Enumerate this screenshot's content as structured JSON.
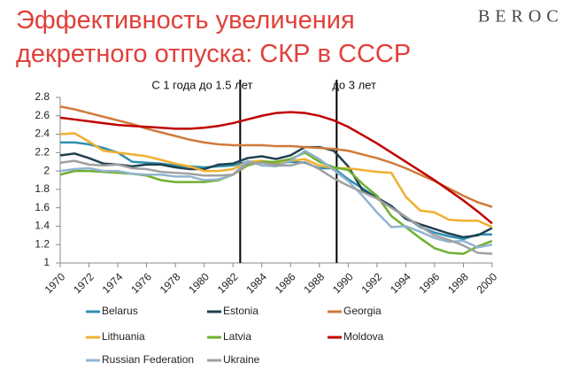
{
  "logo": "BEROC",
  "chart_data": {
    "type": "line",
    "title": [
      "Эффективность увеличения",
      "декретного отпуска: СКР в СССР"
    ],
    "x": [
      1970,
      1971,
      1972,
      1973,
      1974,
      1975,
      1976,
      1977,
      1978,
      1979,
      1980,
      1981,
      1982,
      1983,
      1984,
      1985,
      1986,
      1987,
      1988,
      1989,
      1990,
      1991,
      1992,
      1993,
      1994,
      1995,
      1996,
      1997,
      1998,
      1999,
      2000
    ],
    "xlim": [
      1970,
      2000
    ],
    "xticks": [
      1970,
      1972,
      1974,
      1976,
      1978,
      1980,
      1982,
      1984,
      1986,
      1988,
      1990,
      1992,
      1994,
      1996,
      1998,
      2000
    ],
    "ylim": [
      1,
      2.8
    ],
    "yticks": [
      1,
      1.2,
      1.4,
      1.6,
      1.8,
      2,
      2.2,
      2.4,
      2.6,
      2.8
    ],
    "grid": false,
    "legend": "bottom",
    "annotations": [
      {
        "text": "С 1 года до 1.5 лет",
        "x": 1982.5
      },
      {
        "text": "до 3 лет",
        "x": 1989.2
      }
    ],
    "series": [
      {
        "name": "Belarus",
        "color": "#2f8fb0",
        "values": [
          2.31,
          2.31,
          2.29,
          2.25,
          2.2,
          2.1,
          2.09,
          2.08,
          2.06,
          2.05,
          2.04,
          2.05,
          2.06,
          2.1,
          2.1,
          2.08,
          2.1,
          2.09,
          2.03,
          2.03,
          1.91,
          1.81,
          1.71,
          1.61,
          1.5,
          1.39,
          1.33,
          1.29,
          1.26,
          1.31,
          1.31
        ]
      },
      {
        "name": "Estonia",
        "color": "#1f4050",
        "values": [
          2.17,
          2.19,
          2.14,
          2.08,
          2.07,
          2.05,
          2.07,
          2.07,
          2.04,
          2.02,
          2.02,
          2.07,
          2.08,
          2.14,
          2.16,
          2.13,
          2.17,
          2.26,
          2.26,
          2.22,
          2.05,
          1.79,
          1.71,
          1.62,
          1.48,
          1.42,
          1.37,
          1.32,
          1.28,
          1.3,
          1.38
        ]
      },
      {
        "name": "Georgia",
        "color": "#d07a3a",
        "values": [
          2.7,
          2.67,
          2.63,
          2.59,
          2.55,
          2.51,
          2.46,
          2.42,
          2.38,
          2.34,
          2.31,
          2.29,
          2.28,
          2.28,
          2.28,
          2.27,
          2.27,
          2.26,
          2.25,
          2.24,
          2.22,
          2.18,
          2.14,
          2.09,
          2.03,
          1.96,
          1.89,
          1.81,
          1.73,
          1.66,
          1.61
        ]
      },
      {
        "name": "Lithuania",
        "color": "#f0b030",
        "values": [
          2.4,
          2.41,
          2.32,
          2.22,
          2.2,
          2.18,
          2.16,
          2.12,
          2.08,
          2.05,
          2.0,
          2.0,
          2.02,
          2.1,
          2.11,
          2.09,
          2.11,
          2.13,
          2.06,
          2.03,
          2.03,
          2.01,
          1.99,
          1.98,
          1.72,
          1.57,
          1.55,
          1.47,
          1.46,
          1.46,
          1.39
        ]
      },
      {
        "name": "Latvia",
        "color": "#70b030",
        "values": [
          1.96,
          2.0,
          2.0,
          1.99,
          1.98,
          1.97,
          1.95,
          1.9,
          1.88,
          1.88,
          1.88,
          1.9,
          1.96,
          2.06,
          2.1,
          2.1,
          2.13,
          2.2,
          2.1,
          2.04,
          2.01,
          1.86,
          1.73,
          1.51,
          1.39,
          1.27,
          1.16,
          1.11,
          1.1,
          1.18,
          1.24
        ]
      },
      {
        "name": "Moldova",
        "color": "#c00000",
        "values": [
          2.58,
          2.56,
          2.54,
          2.52,
          2.5,
          2.49,
          2.48,
          2.47,
          2.46,
          2.46,
          2.47,
          2.49,
          2.52,
          2.56,
          2.6,
          2.63,
          2.64,
          2.63,
          2.6,
          2.55,
          2.48,
          2.39,
          2.3,
          2.2,
          2.1,
          2.0,
          1.9,
          1.79,
          1.68,
          1.56,
          1.43
        ]
      },
      {
        "name": "Russian Federation",
        "color": "#92b4d0",
        "values": [
          2.0,
          2.02,
          2.03,
          2.0,
          2.0,
          1.97,
          1.96,
          1.96,
          1.94,
          1.94,
          1.9,
          1.91,
          1.96,
          2.11,
          2.06,
          2.05,
          2.11,
          2.22,
          2.13,
          2.01,
          1.89,
          1.73,
          1.55,
          1.39,
          1.4,
          1.34,
          1.27,
          1.23,
          1.24,
          1.17,
          1.2
        ]
      },
      {
        "name": "Ukraine",
        "color": "#a0a0a0",
        "values": [
          2.09,
          2.11,
          2.07,
          2.06,
          2.07,
          2.03,
          2.02,
          1.99,
          1.98,
          1.97,
          1.95,
          1.95,
          1.96,
          2.08,
          2.09,
          2.06,
          2.06,
          2.1,
          2.02,
          1.92,
          1.84,
          1.77,
          1.7,
          1.6,
          1.5,
          1.4,
          1.3,
          1.25,
          1.19,
          1.11,
          1.1
        ]
      }
    ]
  }
}
